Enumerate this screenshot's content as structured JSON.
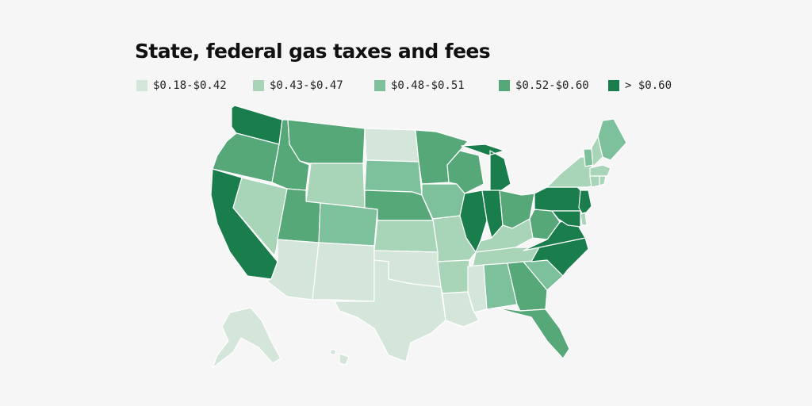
{
  "title": "State, federal gas taxes and fees",
  "legend": {
    "bins": [
      {
        "label": "$0.18-$0.42",
        "color": "#d4e6da"
      },
      {
        "label": "$0.43-$0.47",
        "color": "#a8d4b7"
      },
      {
        "label": "$0.48-$0.51",
        "color": "#7dc09c"
      },
      {
        "label": "$0.52-$0.60",
        "color": "#56a878"
      },
      {
        "label": "> $0.60",
        "color": "#197d4c"
      }
    ]
  },
  "map": {
    "region": "United States",
    "states": [
      {
        "id": "WA",
        "bin": 4
      },
      {
        "id": "OR",
        "bin": 3
      },
      {
        "id": "CA",
        "bin": 4
      },
      {
        "id": "NV",
        "bin": 1
      },
      {
        "id": "ID",
        "bin": 3
      },
      {
        "id": "MT",
        "bin": 3
      },
      {
        "id": "WY",
        "bin": 1
      },
      {
        "id": "UT",
        "bin": 3
      },
      {
        "id": "CO",
        "bin": 2
      },
      {
        "id": "AZ",
        "bin": 0
      },
      {
        "id": "NM",
        "bin": 0
      },
      {
        "id": "ND",
        "bin": 0
      },
      {
        "id": "SD",
        "bin": 2
      },
      {
        "id": "NE",
        "bin": 3
      },
      {
        "id": "KS",
        "bin": 1
      },
      {
        "id": "OK",
        "bin": 0
      },
      {
        "id": "TX",
        "bin": 0
      },
      {
        "id": "MN",
        "bin": 3
      },
      {
        "id": "IA",
        "bin": 2
      },
      {
        "id": "MO",
        "bin": 1
      },
      {
        "id": "AR",
        "bin": 1
      },
      {
        "id": "LA",
        "bin": 0
      },
      {
        "id": "WI",
        "bin": 3
      },
      {
        "id": "IL",
        "bin": 4
      },
      {
        "id": "MI",
        "bin": 4
      },
      {
        "id": "IN",
        "bin": 4
      },
      {
        "id": "OH",
        "bin": 3
      },
      {
        "id": "KY",
        "bin": 1
      },
      {
        "id": "TN",
        "bin": 1
      },
      {
        "id": "MS",
        "bin": 0
      },
      {
        "id": "AL",
        "bin": 2
      },
      {
        "id": "GA",
        "bin": 3
      },
      {
        "id": "FL",
        "bin": 3
      },
      {
        "id": "SC",
        "bin": 2
      },
      {
        "id": "NC",
        "bin": 4
      },
      {
        "id": "VA",
        "bin": 4
      },
      {
        "id": "WV",
        "bin": 3
      },
      {
        "id": "PA",
        "bin": 4
      },
      {
        "id": "NY",
        "bin": 1
      },
      {
        "id": "VT",
        "bin": 2
      },
      {
        "id": "NH",
        "bin": 1
      },
      {
        "id": "ME",
        "bin": 2
      },
      {
        "id": "MA",
        "bin": 1
      },
      {
        "id": "CT",
        "bin": 1
      },
      {
        "id": "RI",
        "bin": 1
      },
      {
        "id": "NJ",
        "bin": 4
      },
      {
        "id": "DE",
        "bin": 1
      },
      {
        "id": "MD",
        "bin": 4
      },
      {
        "id": "AK",
        "bin": 0
      },
      {
        "id": "HI",
        "bin": 0
      }
    ]
  }
}
